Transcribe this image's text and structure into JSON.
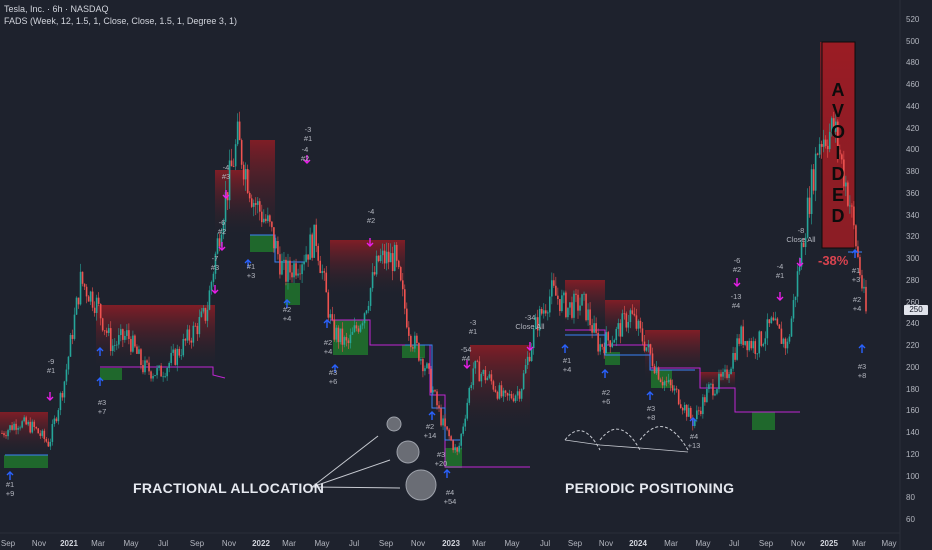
{
  "header": {
    "title": "Tesla, Inc. · 6h · NASDAQ",
    "indicator": "FADS (Week, 12, 1.5, 1, Close, Close, 1.5, 1, Degree 3, 1)"
  },
  "current_price_label": "250",
  "overlay_labels": {
    "left": "FRACTIONAL ALLOCATION",
    "right": "PERIODIC POSITIONING",
    "avoided": "AVOIDED",
    "avoided_pct": "-38%"
  },
  "colors": {
    "background": "#1e222d",
    "up": "#26a69a",
    "down": "#ef5350",
    "buy_arrow": "#2962ff",
    "sell_arrow": "#e91ee9",
    "grid_zone_red": "#a01c24",
    "grid_zone_green": "#1f7a2c",
    "magenta_line": "#c026d3",
    "blue_line": "#3b82f6"
  },
  "icons": [
    "buy-arrow-icon",
    "sell-arrow-icon",
    "allocation-circle-icon"
  ],
  "annotations": [
    {
      "id": "a1",
      "lines": [
        "#1",
        "+9"
      ]
    },
    {
      "id": "a2",
      "lines": [
        "-9",
        "#1"
      ]
    },
    {
      "id": "a3",
      "lines": [
        "#3",
        "+7"
      ]
    },
    {
      "id": "a4",
      "lines": [
        "-7",
        "#3"
      ]
    },
    {
      "id": "a5",
      "lines": [
        "-6",
        "#2"
      ]
    },
    {
      "id": "a6",
      "lines": [
        "-4",
        "#3"
      ]
    },
    {
      "id": "a7",
      "lines": [
        "#1",
        "+3"
      ]
    },
    {
      "id": "a8",
      "lines": [
        "#2",
        "+4"
      ]
    },
    {
      "id": "a9",
      "lines": [
        "-3",
        "#1"
      ]
    },
    {
      "id": "a10",
      "lines": [
        "-4",
        "#2"
      ]
    },
    {
      "id": "a11",
      "lines": [
        "-4",
        "#2"
      ]
    },
    {
      "id": "a12",
      "lines": [
        "#2",
        "+4"
      ]
    },
    {
      "id": "a13",
      "lines": [
        "#3",
        "+6"
      ]
    },
    {
      "id": "a14",
      "lines": [
        "#2",
        "+14"
      ]
    },
    {
      "id": "a15",
      "lines": [
        "#3",
        "+20"
      ]
    },
    {
      "id": "a16",
      "lines": [
        "#4",
        "+54"
      ]
    },
    {
      "id": "a17",
      "lines": [
        "-54",
        "#4"
      ]
    },
    {
      "id": "a18",
      "lines": [
        "-3",
        "#1"
      ]
    },
    {
      "id": "a19",
      "lines": [
        "-34",
        "Close All"
      ]
    },
    {
      "id": "a20",
      "lines": [
        "#1",
        "+4"
      ]
    },
    {
      "id": "a21",
      "lines": [
        "#2",
        "+6"
      ]
    },
    {
      "id": "a22",
      "lines": [
        "#3",
        "+8"
      ]
    },
    {
      "id": "a23",
      "lines": [
        "#4",
        "+13"
      ]
    },
    {
      "id": "a24",
      "lines": [
        "-6",
        "#2"
      ]
    },
    {
      "id": "a25",
      "lines": [
        "-13",
        "#4"
      ]
    },
    {
      "id": "a26",
      "lines": [
        "-4",
        "#1"
      ]
    },
    {
      "id": "a27",
      "lines": [
        "-8",
        "Close All"
      ]
    },
    {
      "id": "a28",
      "lines": [
        "#1",
        "+3"
      ]
    },
    {
      "id": "a29",
      "lines": [
        "#2",
        "+4"
      ]
    },
    {
      "id": "a30",
      "lines": [
        "#3",
        "+8"
      ]
    }
  ],
  "chart_data": {
    "type": "line",
    "title": "Tesla, Inc. · 6h · NASDAQ",
    "xlabel": "",
    "ylabel": "",
    "ylim": [
      50,
      525
    ],
    "y_ticks": [
      60,
      80,
      100,
      120,
      140,
      160,
      180,
      200,
      220,
      240,
      260,
      280,
      300,
      320,
      340,
      360,
      380,
      400,
      420,
      440,
      460,
      480,
      500,
      520
    ],
    "x_ticks": [
      "Sep",
      "Nov",
      "2021",
      "Mar",
      "May",
      "Jul",
      "Sep",
      "Nov",
      "2022",
      "Mar",
      "May",
      "Jul",
      "Sep",
      "Nov",
      "2023",
      "Mar",
      "May",
      "Jul",
      "Sep",
      "Nov",
      "2024",
      "Mar",
      "May",
      "Jul",
      "Sep",
      "Nov",
      "2025",
      "Mar",
      "May"
    ],
    "year_ticks": [
      "2021",
      "2022",
      "2023",
      "2024",
      "2025"
    ],
    "grid": false,
    "series": [
      {
        "name": "",
        "x": [
          "2020-08",
          "2020-09",
          "2020-10",
          "2020-11",
          "2020-12",
          "2021-01",
          "2021-02",
          "2021-03",
          "2021-04",
          "2021-05",
          "2021-06",
          "2021-07",
          "2021-08",
          "2021-09",
          "2021-10",
          "2021-11",
          "2021-12",
          "2022-01",
          "2022-02",
          "2022-03",
          "2022-04",
          "2022-05",
          "2022-06",
          "2022-07",
          "2022-08",
          "2022-09",
          "2022-10",
          "2022-11",
          "2022-12",
          "2023-01",
          "2023-02",
          "2023-03",
          "2023-04",
          "2023-05",
          "2023-06",
          "2023-07",
          "2023-08",
          "2023-09",
          "2023-10",
          "2023-11",
          "2023-12",
          "2024-01",
          "2024-02",
          "2024-03",
          "2024-04",
          "2024-05",
          "2024-06",
          "2024-07",
          "2024-08",
          "2024-09",
          "2024-10",
          "2024-11",
          "2024-12",
          "2025-01",
          "2025-02",
          "2025-03"
        ],
        "values": [
          140,
          150,
          145,
          130,
          190,
          280,
          260,
          220,
          230,
          200,
          195,
          210,
          230,
          250,
          340,
          410,
          355,
          330,
          285,
          300,
          320,
          235,
          220,
          250,
          300,
          300,
          230,
          200,
          150,
          120,
          200,
          190,
          170,
          180,
          240,
          270,
          255,
          260,
          220,
          230,
          250,
          220,
          190,
          175,
          150,
          180,
          190,
          230,
          220,
          240,
          220,
          320,
          410,
          420,
          350,
          250
        ]
      }
    ]
  }
}
